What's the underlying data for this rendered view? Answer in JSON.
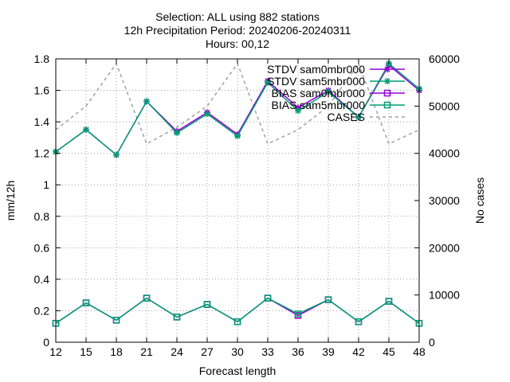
{
  "chart_data": {
    "type": "line",
    "title_lines": [
      "Selection: ALL using   882 stations",
      "12h Precipitation   Period: 20240206-20240311",
      "Hours: 00,12"
    ],
    "xlabel": "Forecast length",
    "ylabel": "mm/12h",
    "y2label": "No cases",
    "x": [
      12,
      15,
      18,
      21,
      24,
      27,
      30,
      33,
      36,
      39,
      42,
      45,
      48
    ],
    "xlim": [
      12,
      48
    ],
    "ylim": [
      0,
      1.8
    ],
    "y2lim": [
      0,
      60000
    ],
    "yticks": [
      "0",
      "0.2",
      "0.4",
      "0.6",
      "0.8",
      "1",
      "1.2",
      "1.4",
      "1.6",
      "1.8"
    ],
    "y2ticks": [
      "0",
      "10000",
      "20000",
      "30000",
      "40000",
      "50000",
      "60000"
    ],
    "grid": true,
    "legend_position": "top-right",
    "series": [
      {
        "name": "STDV sam0mbr000",
        "axis": "y",
        "color": "#9400d3",
        "marker": "star",
        "values": [
          1.21,
          1.35,
          1.19,
          1.53,
          1.34,
          1.46,
          1.32,
          1.66,
          1.49,
          1.6,
          1.43,
          1.76,
          1.6
        ]
      },
      {
        "name": "STDV sam5mbr000",
        "axis": "y",
        "color": "#009e73",
        "marker": "star",
        "values": [
          1.21,
          1.35,
          1.19,
          1.53,
          1.33,
          1.45,
          1.31,
          1.65,
          1.47,
          1.59,
          1.43,
          1.77,
          1.61
        ]
      },
      {
        "name": "BIAS sam0mbr000",
        "axis": "y",
        "color": "#9400d3",
        "marker": "square",
        "values": [
          0.12,
          0.25,
          0.14,
          0.28,
          0.16,
          0.24,
          0.13,
          0.28,
          0.17,
          0.27,
          0.13,
          0.26,
          0.12
        ]
      },
      {
        "name": "BIAS sam5mbr000",
        "axis": "y",
        "color": "#009e73",
        "marker": "square",
        "values": [
          0.12,
          0.25,
          0.14,
          0.28,
          0.16,
          0.24,
          0.13,
          0.28,
          0.18,
          0.27,
          0.13,
          0.26,
          0.12
        ]
      },
      {
        "name": "CASES",
        "axis": "y2",
        "color": "#a0a0a0",
        "dashed": true,
        "marker": "none",
        "values": [
          45000,
          50000,
          59000,
          42000,
          45500,
          50000,
          59000,
          42000,
          45000,
          50000,
          59000,
          42000,
          45000
        ]
      }
    ]
  }
}
